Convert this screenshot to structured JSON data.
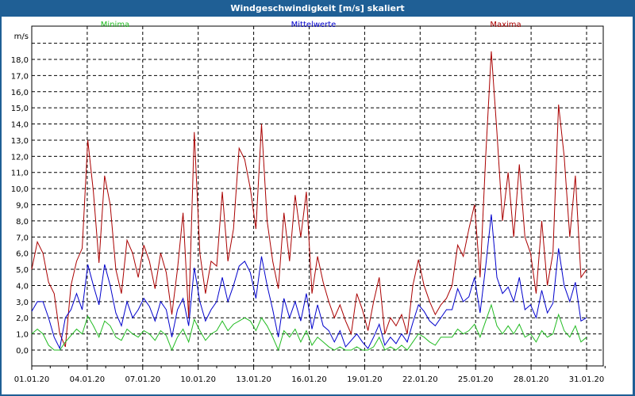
{
  "window": {
    "title": "Windgeschwindigkeit [m/s] skaliert"
  },
  "legend": [
    {
      "name": "Minima",
      "color": "#22bb22"
    },
    {
      "name": "Mittelwerte",
      "color": "#0000cc"
    },
    {
      "name": "Maxima",
      "color": "#aa0000"
    }
  ],
  "chart_data": {
    "type": "line",
    "title": "Windgeschwindigkeit [m/s] skaliert",
    "xlabel": "",
    "ylabel": "m/s",
    "ylim": [
      -0.9,
      19.5
    ],
    "yticks": [
      "0,0",
      "1,0",
      "2,0",
      "3,0",
      "4,0",
      "5,0",
      "6,0",
      "7,0",
      "8,0",
      "9,0",
      "10,0",
      "11,0",
      "12,0",
      "13,0",
      "14,0",
      "15,0",
      "16,0",
      "17,0",
      "18,0"
    ],
    "xticks": [
      "01.01.20",
      "04.01.20",
      "07.01.20",
      "10.01.20",
      "13.01.20",
      "16.01.20",
      "19.01.20",
      "22.01.20",
      "25.01.20",
      "28.01.20",
      "31.01.20"
    ],
    "grid": true,
    "legend_position": "top",
    "x_days_start": 0,
    "x_step_days": 0.5,
    "series": [
      {
        "name": "Maxima",
        "color": "#aa0000",
        "values": [
          5.0,
          6.7,
          6.0,
          4.2,
          3.5,
          1.0,
          0.2,
          4.0,
          5.5,
          6.3,
          13.0,
          9.8,
          5.4,
          10.8,
          9.0,
          5.0,
          3.5,
          6.8,
          6.0,
          4.5,
          6.5,
          5.5,
          3.8,
          6.0,
          4.8,
          2.2,
          5.0,
          8.5,
          2.0,
          13.5,
          6.0,
          3.5,
          5.5,
          5.2,
          9.8,
          5.5,
          7.5,
          12.5,
          11.8,
          10.0,
          7.5,
          14.0,
          8.0,
          5.5,
          3.8,
          8.5,
          5.5,
          9.6,
          7.0,
          9.8,
          3.5,
          5.8,
          4.2,
          3.0,
          2.0,
          2.8,
          1.8,
          1.0,
          3.5,
          2.5,
          1.2,
          3.0,
          4.5,
          1.0,
          2.0,
          1.5,
          2.2,
          1.0,
          4.0,
          5.6,
          4.0,
          3.0,
          2.2,
          2.8,
          3.2,
          4.0,
          6.5,
          5.8,
          7.5,
          9.0,
          4.5,
          12.0,
          18.5,
          13.5,
          8.0,
          11.0,
          7.0,
          11.5,
          7.0,
          6.0,
          3.5,
          8.0,
          4.0,
          6.0,
          15.2,
          12.0,
          7.0,
          10.8,
          4.5,
          5.0
        ]
      },
      {
        "name": "Mittelwerte",
        "color": "#0000cc",
        "values": [
          2.4,
          3.0,
          3.0,
          2.0,
          0.8,
          0.1,
          2.0,
          2.5,
          3.5,
          2.5,
          5.3,
          4.0,
          2.8,
          5.3,
          4.0,
          2.3,
          1.5,
          3.0,
          2.0,
          2.5,
          3.2,
          2.7,
          1.8,
          3.0,
          2.5,
          0.8,
          2.5,
          3.2,
          1.5,
          5.1,
          3.0,
          1.8,
          2.5,
          3.0,
          4.5,
          3.0,
          4.0,
          5.2,
          5.5,
          4.8,
          3.2,
          5.8,
          4.0,
          2.5,
          0.8,
          3.2,
          2.0,
          3.0,
          1.8,
          3.5,
          1.3,
          2.8,
          1.5,
          1.2,
          0.5,
          1.2,
          0.2,
          0.6,
          1.0,
          0.5,
          0.1,
          0.8,
          1.6,
          0.3,
          0.8,
          0.4,
          1.0,
          0.5,
          1.7,
          2.8,
          2.4,
          1.8,
          1.5,
          2.0,
          2.5,
          2.5,
          3.8,
          3.0,
          3.3,
          4.5,
          2.3,
          5.2,
          8.4,
          4.5,
          3.5,
          3.9,
          3.0,
          4.5,
          2.5,
          2.8,
          2.0,
          3.7,
          2.3,
          2.9,
          6.3,
          4.0,
          3.0,
          4.2,
          1.8,
          2.0
        ]
      },
      {
        "name": "Minima",
        "color": "#22bb22",
        "values": [
          1.0,
          1.3,
          1.0,
          0.3,
          0.0,
          0.0,
          0.5,
          0.9,
          1.3,
          1.0,
          2.1,
          1.5,
          0.8,
          1.8,
          1.5,
          0.8,
          0.6,
          1.3,
          1.0,
          0.8,
          1.2,
          1.0,
          0.6,
          1.2,
          0.9,
          0.0,
          0.8,
          1.3,
          0.5,
          1.9,
          1.2,
          0.6,
          1.0,
          1.2,
          1.8,
          1.2,
          1.6,
          1.8,
          2.0,
          1.8,
          1.2,
          2.0,
          1.5,
          0.8,
          0.0,
          1.2,
          0.8,
          1.3,
          0.5,
          1.2,
          0.3,
          0.8,
          0.5,
          0.2,
          0.0,
          0.2,
          0.0,
          0.0,
          0.2,
          0.0,
          0.0,
          0.2,
          0.8,
          0.0,
          0.2,
          0.0,
          0.3,
          0.0,
          0.5,
          1.0,
          0.8,
          0.5,
          0.3,
          0.8,
          0.8,
          0.8,
          1.3,
          1.0,
          1.2,
          1.6,
          0.8,
          1.8,
          2.8,
          1.5,
          1.0,
          1.5,
          1.0,
          1.6,
          0.8,
          1.0,
          0.5,
          1.2,
          0.8,
          1.0,
          2.2,
          1.2,
          0.8,
          1.5,
          0.5,
          0.8
        ]
      }
    ]
  }
}
